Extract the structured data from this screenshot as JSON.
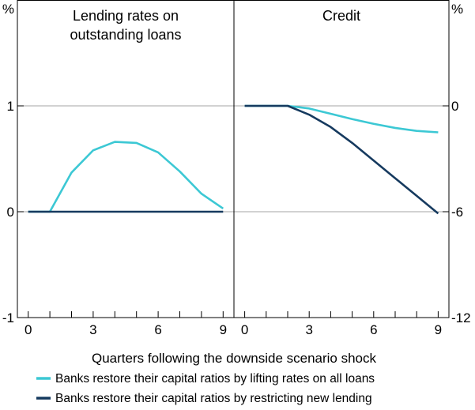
{
  "chart_data": {
    "type": "line",
    "xlabel": "Quarters following the downside scenario shock",
    "legend": {
      "placement": "bottom",
      "entries": [
        {
          "label": "Banks restore their capital ratios by lifting rates on all loans",
          "color": "#3cc8d4"
        },
        {
          "label": "Banks restore their capital ratios by restricting new lending",
          "color": "#163a5f"
        }
      ]
    },
    "panels": [
      {
        "title": [
          "Lending rates on",
          "outstanding loans"
        ],
        "unit": "%",
        "axis_side": "left",
        "ylim": [
          -1,
          2
        ],
        "yticks": [
          -1,
          0,
          1
        ],
        "ytick_labels": [
          "-1",
          "0",
          "1"
        ],
        "xlim": [
          -0.5,
          9.5
        ],
        "xticks": [
          0,
          1,
          2,
          3,
          4,
          5,
          6,
          7,
          8,
          9
        ],
        "xtick_labels": [
          "0",
          "",
          "",
          "3",
          "",
          "",
          "6",
          "",
          "",
          "9"
        ],
        "gridlines": [
          0,
          1
        ],
        "series": [
          {
            "color": "#3cc8d4",
            "x": [
              0,
              1,
              2,
              3,
              4,
              5,
              6,
              7,
              8,
              9
            ],
            "y": [
              0,
              0,
              0.37,
              0.58,
              0.66,
              0.65,
              0.56,
              0.38,
              0.17,
              0.03
            ]
          },
          {
            "color": "#163a5f",
            "x": [
              0,
              1,
              2,
              3,
              4,
              5,
              6,
              7,
              8,
              9
            ],
            "y": [
              0,
              0,
              0,
              0,
              0,
              0,
              0,
              0,
              0,
              0
            ]
          }
        ]
      },
      {
        "title": [
          "Credit"
        ],
        "unit": "%",
        "axis_side": "right",
        "ylim": [
          -12,
          6
        ],
        "yticks": [
          -12,
          -6,
          0
        ],
        "ytick_labels": [
          "-12",
          "-6",
          "0"
        ],
        "xlim": [
          -0.5,
          9.5
        ],
        "xticks": [
          0,
          1,
          2,
          3,
          4,
          5,
          6,
          7,
          8,
          9
        ],
        "xtick_labels": [
          "0",
          "",
          "",
          "3",
          "",
          "",
          "6",
          "",
          "",
          "9"
        ],
        "gridlines": [
          -6,
          0
        ],
        "series": [
          {
            "color": "#3cc8d4",
            "x": [
              0,
              1,
              2,
              3,
              4,
              5,
              6,
              7,
              8,
              9
            ],
            "y": [
              0,
              0,
              0,
              -0.15,
              -0.45,
              -0.75,
              -1.02,
              -1.25,
              -1.42,
              -1.5
            ]
          },
          {
            "color": "#163a5f",
            "x": [
              0,
              1,
              2,
              3,
              4,
              5,
              6,
              7,
              8,
              9
            ],
            "y": [
              0,
              0,
              0,
              -0.5,
              -1.2,
              -2.1,
              -3.1,
              -4.1,
              -5.1,
              -6.1
            ]
          }
        ]
      }
    ]
  }
}
